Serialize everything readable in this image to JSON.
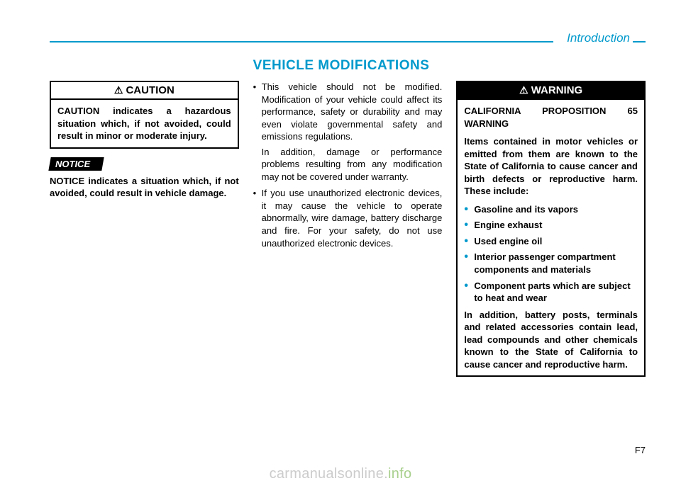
{
  "header": {
    "section": "Introduction"
  },
  "heading": "VEHICLE MODIFICATIONS",
  "col1": {
    "caution": {
      "title_icon": "⚠",
      "title": "CAUTION",
      "body": "CAUTION indicates a hazardous situation which, if not avoided, could result in minor or moderate injury."
    },
    "notice_label": "NOTICE",
    "notice_body": "NOTICE indicates a situation which, if not avoided, could result in vehicle damage."
  },
  "col2": {
    "items": [
      {
        "text": "This vehicle should not be modified. Modification of your vehicle could affect its performance, safety or durability and may even violate governmental safety and emissions regulations.",
        "para": "In addition, damage or performance problems resulting from any modification may not be covered under warranty."
      },
      {
        "text": "If you use unauthorized electronic devices, it may cause the vehicle to operate abnormally, wire damage, battery discharge and fire. For your safety, do not use unauthorized electronic devices."
      }
    ]
  },
  "col3": {
    "warning": {
      "title_icon": "⚠",
      "title": "WARNING",
      "heading": "CALIFORNIA PROPOSITION 65 WARNING",
      "intro": "Items contained in motor vehicles or emitted from them are known to the State of California to cause cancer and birth defects or reproductive harm. These include:",
      "bullets": [
        "Gasoline and its vapors",
        "Engine exhaust",
        "Used engine oil",
        "Interior passenger compartment components and materials",
        "Component parts which are subject to heat and wear"
      ],
      "outro": "In addition, battery posts, terminals and related accessories contain lead, lead compounds and other chemicals known to the State of California to cause cancer and reproductive harm."
    }
  },
  "pagenum": "F7",
  "watermark_a": "carmanualsonline.",
  "watermark_b": "info",
  "colors": {
    "accent": "#0099cc",
    "text": "#000000",
    "wm_gray": "#cccccc",
    "wm_green": "#a9d08e"
  }
}
